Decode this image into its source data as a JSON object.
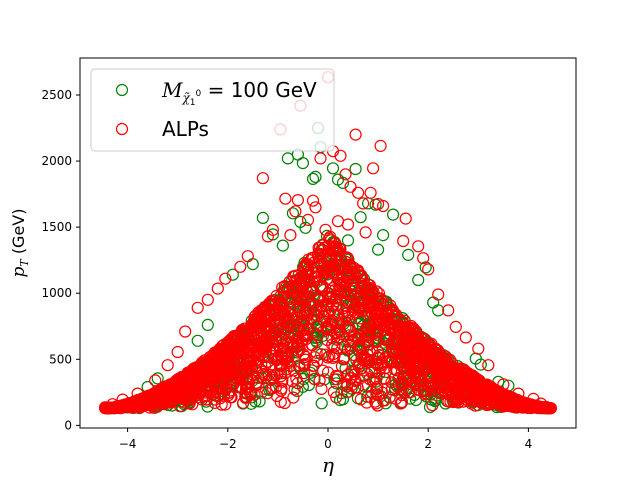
{
  "chart_data": {
    "type": "scatter",
    "title": "",
    "xlabel": "η",
    "ylabel": "p_T (GeV)",
    "ylabel_main": "p",
    "ylabel_sub": "T",
    "ylabel_unit": " (GeV)",
    "xlim": [
      -4.95,
      4.95
    ],
    "ylim": [
      -20,
      2780
    ],
    "xticks": [
      -4,
      -2,
      0,
      2,
      4
    ],
    "xtick_labels": [
      "−4",
      "−2",
      "0",
      "2",
      "4"
    ],
    "yticks": [
      0,
      500,
      1000,
      1500,
      2000,
      2500
    ],
    "ytick_labels": [
      "0",
      "500",
      "1000",
      "1500",
      "2000",
      "2500"
    ],
    "grid": false,
    "legend_position": "upper-left",
    "marker": "open-circle",
    "colors": {
      "series_1": "#008000",
      "series_2": "#ff0000",
      "axes": "#000000",
      "background": "#ffffff"
    },
    "series": [
      {
        "name": "M_χ̃₁⁰ = 100 GeV",
        "legend_main": "M",
        "legend_sub": "χ̃",
        "legend_sub_index": "1",
        "legend_sup": "0",
        "legend_rest": " = 100 GeV",
        "color": "#008000",
        "distribution": {
          "eta_range": [
            -4.4,
            4.4
          ],
          "pt_min": 130,
          "envelope_peak_pt": 1450,
          "envelope_falloff": 0.5
        },
        "points": [
          {
            "x": -0.2,
            "y": 2250
          },
          {
            "x": -0.8,
            "y": 2020
          },
          {
            "x": -0.6,
            "y": 2050
          },
          {
            "x": -0.5,
            "y": 1985
          },
          {
            "x": -0.3,
            "y": 1865
          },
          {
            "x": -0.25,
            "y": 1880
          },
          {
            "x": -0.15,
            "y": 2105
          },
          {
            "x": 0.1,
            "y": 1945
          },
          {
            "x": 0.2,
            "y": 1860
          },
          {
            "x": 0.3,
            "y": 1835
          },
          {
            "x": 0.55,
            "y": 1940
          },
          {
            "x": 0.8,
            "y": 1680
          },
          {
            "x": 0.95,
            "y": 1670
          },
          {
            "x": 1.3,
            "y": 1595
          },
          {
            "x": -1.3,
            "y": 1570
          },
          {
            "x": -0.7,
            "y": 1605
          },
          {
            "x": -0.55,
            "y": 1540
          },
          {
            "x": -0.45,
            "y": 1495
          },
          {
            "x": 0.65,
            "y": 1575
          },
          {
            "x": 1.1,
            "y": 1440
          },
          {
            "x": -1.1,
            "y": 1445
          },
          {
            "x": -1.5,
            "y": 1220
          },
          {
            "x": 1.6,
            "y": 1290
          },
          {
            "x": 1.95,
            "y": 1195
          },
          {
            "x": -1.9,
            "y": 1140
          },
          {
            "x": 2.2,
            "y": 870
          },
          {
            "x": 2.1,
            "y": 930
          },
          {
            "x": 2.95,
            "y": 505
          },
          {
            "x": 3.05,
            "y": 460
          },
          {
            "x": 3.4,
            "y": 330
          },
          {
            "x": 3.6,
            "y": 300
          },
          {
            "x": -3.4,
            "y": 355
          },
          {
            "x": -3.6,
            "y": 290
          },
          {
            "x": -2.4,
            "y": 760
          },
          {
            "x": -2.6,
            "y": 640
          },
          {
            "x": 1.8,
            "y": 1100
          },
          {
            "x": -0.9,
            "y": 1360
          },
          {
            "x": 0.4,
            "y": 1400
          },
          {
            "x": 1.0,
            "y": 1330
          }
        ]
      },
      {
        "name": "ALPs",
        "color": "#ff0000",
        "distribution": {
          "eta_range": [
            -4.45,
            4.45
          ],
          "pt_min": 130,
          "envelope_peak_pt": 1450,
          "envelope_falloff": 0.5
        },
        "points": [
          {
            "x": 0.0,
            "y": 2635
          },
          {
            "x": -0.95,
            "y": 2240
          },
          {
            "x": -0.55,
            "y": 2420
          },
          {
            "x": 0.55,
            "y": 2200
          },
          {
            "x": 1.05,
            "y": 2115
          },
          {
            "x": 0.1,
            "y": 2075
          },
          {
            "x": 0.25,
            "y": 2040
          },
          {
            "x": -0.15,
            "y": 2020
          },
          {
            "x": -1.3,
            "y": 1870
          },
          {
            "x": 0.9,
            "y": 1945
          },
          {
            "x": 0.35,
            "y": 1900
          },
          {
            "x": 0.45,
            "y": 1805
          },
          {
            "x": 0.6,
            "y": 1760
          },
          {
            "x": 0.85,
            "y": 1760
          },
          {
            "x": -0.6,
            "y": 1705
          },
          {
            "x": -0.3,
            "y": 1700
          },
          {
            "x": -0.85,
            "y": 1715
          },
          {
            "x": -0.25,
            "y": 1650
          },
          {
            "x": 0.7,
            "y": 1680
          },
          {
            "x": 1.0,
            "y": 1675
          },
          {
            "x": 1.1,
            "y": 1660
          },
          {
            "x": 1.55,
            "y": 1565
          },
          {
            "x": -0.65,
            "y": 1620
          },
          {
            "x": -0.4,
            "y": 1555
          },
          {
            "x": 0.2,
            "y": 1545
          },
          {
            "x": 0.4,
            "y": 1520
          },
          {
            "x": -1.1,
            "y": 1480
          },
          {
            "x": -1.2,
            "y": 1430
          },
          {
            "x": 1.8,
            "y": 1355
          },
          {
            "x": 1.5,
            "y": 1395
          },
          {
            "x": -1.6,
            "y": 1280
          },
          {
            "x": 2.0,
            "y": 1180
          },
          {
            "x": 1.9,
            "y": 1265
          },
          {
            "x": -1.75,
            "y": 1200
          },
          {
            "x": -2.05,
            "y": 1110
          },
          {
            "x": 2.2,
            "y": 990
          },
          {
            "x": -2.4,
            "y": 950
          },
          {
            "x": -2.2,
            "y": 1035
          },
          {
            "x": 2.4,
            "y": 870
          },
          {
            "x": -2.6,
            "y": 890
          },
          {
            "x": 2.55,
            "y": 745
          },
          {
            "x": -2.85,
            "y": 710
          },
          {
            "x": 2.75,
            "y": 665
          },
          {
            "x": -3.0,
            "y": 555
          },
          {
            "x": 3.0,
            "y": 580
          },
          {
            "x": -3.2,
            "y": 455
          },
          {
            "x": 3.2,
            "y": 455
          },
          {
            "x": -3.45,
            "y": 340
          },
          {
            "x": 3.5,
            "y": 310
          },
          {
            "x": -3.8,
            "y": 240
          },
          {
            "x": 3.8,
            "y": 240
          },
          {
            "x": -4.1,
            "y": 195
          },
          {
            "x": 4.1,
            "y": 200
          },
          {
            "x": -4.45,
            "y": 137
          },
          {
            "x": 4.35,
            "y": 140
          },
          {
            "x": -4.3,
            "y": 160
          },
          {
            "x": 4.25,
            "y": 165
          },
          {
            "x": -0.05,
            "y": 1480
          },
          {
            "x": 0.75,
            "y": 1460
          },
          {
            "x": -0.75,
            "y": 1440
          }
        ]
      }
    ]
  }
}
